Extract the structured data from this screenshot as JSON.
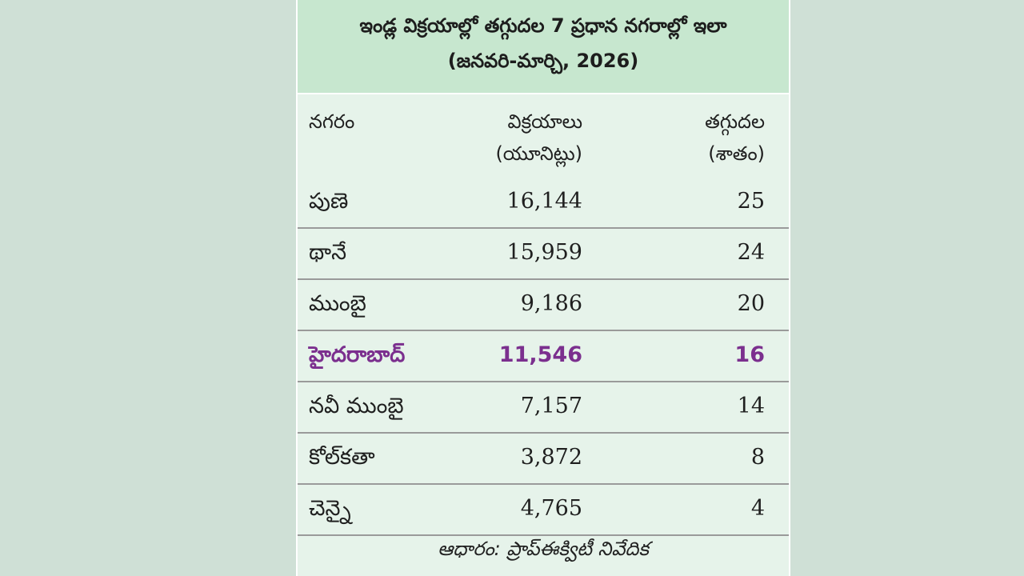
{
  "title": {
    "line1": "ఇండ్ల విక్రయాల్లో తగ్గుదల 7 ప్రధాన నగరాల్లో ఇలా",
    "line2": "(జనవరి-మార్చి, 2026)"
  },
  "columns": {
    "city": "నగరం",
    "units_line1": "విక్రయాలు",
    "units_line2": "(యూనిట్లు)",
    "decline_line1": "తగ్గుదల",
    "decline_line2": "(శాతం)"
  },
  "rows": [
    {
      "city": "పుణె",
      "units": "16,144",
      "decline": "25"
    },
    {
      "city": "థానే",
      "units": "15,959",
      "decline": "24"
    },
    {
      "city": "ముంబై",
      "units": "9,186",
      "decline": "20"
    },
    {
      "city": "హైదరాబాద్",
      "units": "11,546",
      "decline": "16",
      "highlight": true
    },
    {
      "city": "నవీ ముంబై",
      "units": "7,157",
      "decline": "14"
    },
    {
      "city": "కోల్‌కతా",
      "units": "3,872",
      "decline": "8"
    },
    {
      "city": "చెన్నై",
      "units": "4,765",
      "decline": "4"
    }
  ],
  "source": "ఆధారం: ప్రాప్‌ఈక్విటీ నివేదిక",
  "colors": {
    "background": "#cfe0d6",
    "card": "#e6f3ea",
    "title_band": "#c7e7cf",
    "highlight": "#7b2f8e"
  }
}
